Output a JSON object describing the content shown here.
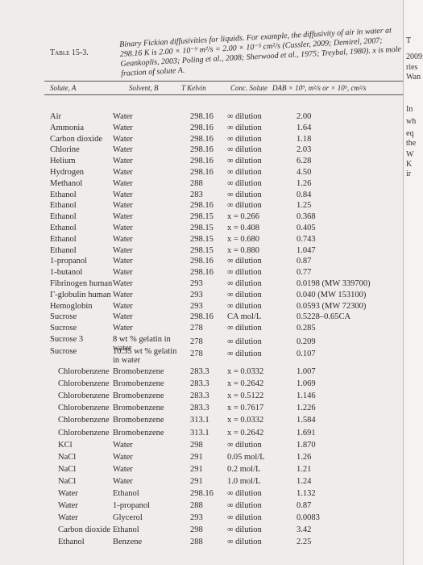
{
  "table": {
    "label": "Table 15-3.",
    "caption": "Binary Fickian diffusivities for liquids. For example, the diffusivity of air in water at 298.16 K is 2.00 × 10⁻⁹ m²/s = 2.00 × 10⁻⁵ cm²/s (Cussler, 2009; Demirel, 2007; Geankoplis, 2003; Poling et al., 2008; Sherwood et al., 1975; Treybal, 1980). x is mole fraction of solute A.",
    "headers": [
      "Solute, A",
      "Solvent, B",
      "T Kelvin",
      "Conc. Solute",
      "DAB × 10⁹, m²/s or × 10⁵, cm²/s"
    ],
    "rows": [
      [
        "Air",
        "Water",
        "298.16",
        "∞ dilution",
        "2.00"
      ],
      [
        "Ammonia",
        "Water",
        "298.16",
        "∞ dilution",
        "1.64"
      ],
      [
        "Carbon dioxide",
        "Water",
        "298.16",
        "∞ dilution",
        "1.18"
      ],
      [
        "Chlorine",
        "Water",
        "298.16",
        "∞ dilution",
        "2.03"
      ],
      [
        "Helium",
        "Water",
        "298.16",
        "∞ dilution",
        "6.28"
      ],
      [
        "Hydrogen",
        "Water",
        "298.16",
        "∞ dilution",
        "4.50"
      ],
      [
        "Methanol",
        "Water",
        "288",
        "∞ dilution",
        "1.26"
      ],
      [
        "Ethanol",
        "Water",
        "283",
        "∞ dilution",
        "0.84"
      ],
      [
        "Ethanol",
        "Water",
        "298.16",
        "∞ dilution",
        "1.25"
      ],
      [
        "Ethanol",
        "Water",
        "298.15",
        "x = 0.266",
        "0.368"
      ],
      [
        "Ethanol",
        "Water",
        "298.15",
        "x = 0.408",
        "0.405"
      ],
      [
        "Ethanol",
        "Water",
        "298.15",
        "x = 0.680",
        "0.743"
      ],
      [
        "Ethanol",
        "Water",
        "298.15",
        "x = 0.880",
        "1.047"
      ],
      [
        "1-propanol",
        "Water",
        "298.16",
        "∞ dilution",
        "0.87"
      ],
      [
        "1-butanol",
        "Water",
        "298.16",
        "∞ dilution",
        "0.77"
      ],
      [
        "Fibrinogen human",
        "Water",
        "293",
        "∞ dilution",
        "0.0198 (MW 339700)"
      ],
      [
        "Γ-globulin human",
        "Water",
        "293",
        "∞ dilution",
        "0.040 (MW 153100)"
      ],
      [
        "Hemoglobin",
        "Water",
        "293",
        "∞ dilution",
        "0.0593 (MW 72300)"
      ],
      [
        "Sucrose",
        "Water",
        "298.16",
        "CA mol/L",
        "0.5228–0.65CA"
      ],
      [
        "Sucrose",
        "Water",
        "278",
        "∞ dilution",
        "0.285"
      ],
      [
        "Sucrose 3",
        "8 wt % gelatin in water",
        "278",
        "∞ dilution",
        "0.209"
      ],
      [
        "Sucrose",
        "10.35 wt % gelatin in water",
        "278",
        "∞ dilution",
        "0.107"
      ],
      [
        "Chlorobenzene",
        "Bromobenzene",
        "283.3",
        "x = 0.0332",
        "1.007"
      ],
      [
        "Chlorobenzene",
        "Bromobenzene",
        "283.3",
        "x = 0.2642",
        "1.069"
      ],
      [
        "Chlorobenzene",
        "Bromobenzene",
        "283.3",
        "x = 0.5122",
        "1.146"
      ],
      [
        "Chlorobenzene",
        "Bromobenzene",
        "283.3",
        "x = 0.7617",
        "1.226"
      ],
      [
        "Chlorobenzene",
        "Bromobenzene",
        "313.1",
        "x = 0.0332",
        "1.584"
      ],
      [
        "Chlorobenzene",
        "Bromobenzene",
        "313.1",
        "x = 0.2642",
        "1.691"
      ],
      [
        "KCl",
        "Water",
        "298",
        "∞ dilution",
        "1.870"
      ],
      [
        "NaCl",
        "Water",
        "291",
        "0.05 mol/L",
        "1.26"
      ],
      [
        "NaCl",
        "Water",
        "291",
        "0.2 mol/L",
        "1.21"
      ],
      [
        "NaCl",
        "Water",
        "291",
        "1.0 mol/L",
        "1.24"
      ],
      [
        "Water",
        "Ethanol",
        "298.16",
        "∞ dilution",
        "1.132"
      ],
      [
        "Water",
        "1-propanol",
        "288",
        "∞ dilution",
        "0.87"
      ],
      [
        "Water",
        "Glycerol",
        "293",
        "∞ dilution",
        "0.0083"
      ],
      [
        "Carbon dioxide",
        "Ethanol",
        "298",
        "∞ dilution",
        "3.42"
      ],
      [
        "Ethanol",
        "Benzene",
        "288",
        "∞ dilution",
        "2.25"
      ]
    ]
  },
  "margin": [
    "T",
    "2009;",
    "ries",
    "Wan",
    "In",
    "wh",
    "eq",
    "the",
    "W",
    "K",
    "ir"
  ]
}
